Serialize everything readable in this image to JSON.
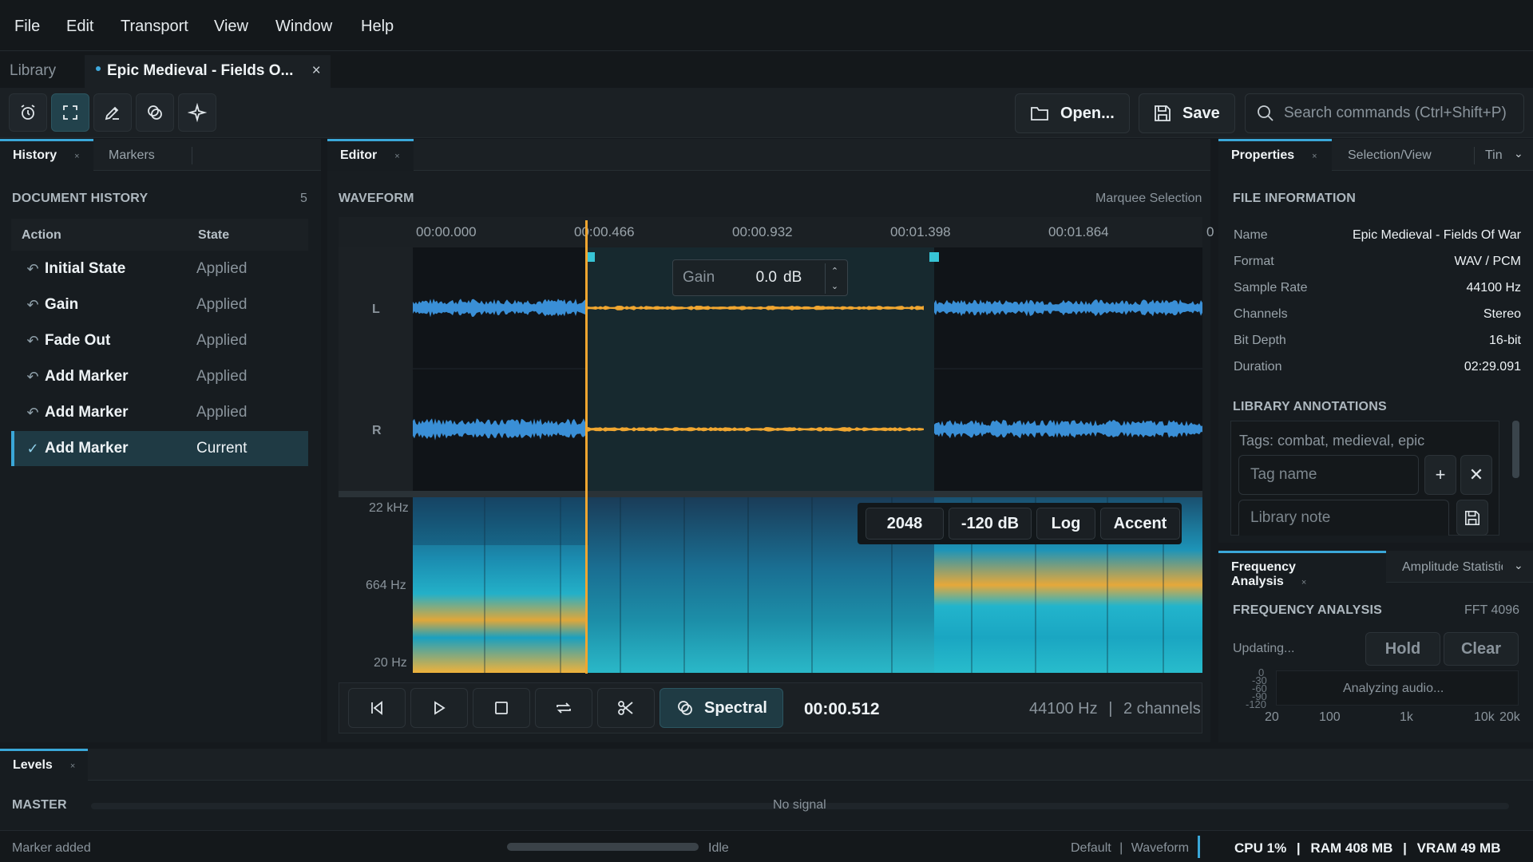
{
  "menu": [
    "File",
    "Edit",
    "Transport",
    "View",
    "Window",
    "Help"
  ],
  "doc_tabs": {
    "library": "Library",
    "active": "Epic Medieval - Fields O...",
    "close": "×"
  },
  "toolbar": {
    "open_label": "Open...",
    "save_label": "Save",
    "search_placeholder": "Search commands (Ctrl+Shift+P)"
  },
  "left_panel": {
    "tabs": [
      "History",
      "Markers"
    ],
    "close": "×",
    "section_title": "DOCUMENT HISTORY",
    "count": "5",
    "columns": [
      "Action",
      "State"
    ],
    "rows": [
      {
        "action": "Initial State",
        "state": "Applied"
      },
      {
        "action": "Gain",
        "state": "Applied"
      },
      {
        "action": "Fade Out",
        "state": "Applied"
      },
      {
        "action": "Add Marker",
        "state": "Applied"
      },
      {
        "action": "Add Marker",
        "state": "Applied"
      },
      {
        "action": "Add Marker",
        "state": "Current"
      }
    ]
  },
  "editor": {
    "tab": "Editor",
    "close": "×",
    "section_title": "WAVEFORM",
    "mode": "Marquee Selection",
    "timecodes": [
      "00:00.000",
      "00:00.466",
      "00:00.932",
      "00:01.398",
      "00:01.864",
      "0"
    ],
    "channels": [
      "L",
      "R"
    ],
    "gain": {
      "label": "Gain",
      "value": "0.0",
      "unit": "dB"
    },
    "freq_labels": [
      "22 kHz",
      "664 Hz",
      "20 Hz"
    ],
    "spectro_chips": [
      "2048",
      "-120 dB",
      "Log",
      "Accent"
    ],
    "spectral_label": "Spectral",
    "position": "00:00.512",
    "sample_rate": "44100 Hz",
    "channels_info": "2 channels",
    "separator": "|"
  },
  "properties": {
    "tabs": [
      "Properties",
      "Selection/View",
      "Tin"
    ],
    "close": "×",
    "section_title": "FILE INFORMATION",
    "items": [
      {
        "key": "Name",
        "value": "Epic Medieval - Fields Of War"
      },
      {
        "key": "Format",
        "value": "WAV / PCM"
      },
      {
        "key": "Sample Rate",
        "value": "44100 Hz"
      },
      {
        "key": "Channels",
        "value": "Stereo"
      },
      {
        "key": "Bit Depth",
        "value": "16-bit"
      },
      {
        "key": "Duration",
        "value": "02:29.091"
      }
    ],
    "annotations_title": "LIBRARY ANNOTATIONS",
    "tags_placeholder": "Tags: combat, medieval, epic",
    "tag_placeholder": "Tag name",
    "note_placeholder": "Library note"
  },
  "frequency": {
    "tabs": [
      "Frequency Analysis",
      "Amplitude Statistic"
    ],
    "close": "×",
    "section_title": "FREQUENCY ANALYSIS",
    "fft": "FFT 4096",
    "status": "Updating...",
    "hold": "Hold",
    "clear": "Clear",
    "analyzing": "Analyzing audio...",
    "y_ticks": [
      "0",
      "-30",
      "-60",
      "-90",
      "-120"
    ],
    "x_ticks": [
      "20",
      "100",
      "1k",
      "10k",
      "20k"
    ]
  },
  "levels": {
    "tab": "Levels",
    "close": "×",
    "label": "MASTER",
    "signal": "No signal"
  },
  "status": {
    "message": "Marker added",
    "state": "Idle",
    "profile": "Default",
    "view": "Waveform",
    "separator": "|",
    "cpu": "CPU 1%",
    "ram": "RAM 408 MB",
    "vram": "VRAM 49 MB"
  },
  "colors": {
    "accent": "#3aa7d8",
    "waveform": "#3a8fd6",
    "selection_wave": "#f0a630",
    "playhead": "#f0a630",
    "handle": "#37c4d6"
  }
}
